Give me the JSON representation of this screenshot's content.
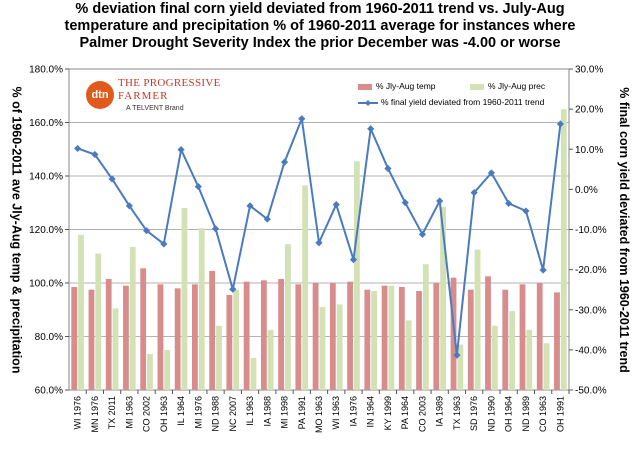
{
  "header": {
    "title_lines": [
      "%  deviation final corn yield deviated from 1960-2011 trend vs. July-Aug",
      "temperature and precipitation % of 1960-2011 average for instances where",
      "Palmer Drought Severity Index the prior December was -4.00 or worse"
    ]
  },
  "logo": {
    "mark": "dtn",
    "line1": "THE PROGRESSIVE",
    "line2": "FARMER",
    "line3": "A TELVENT Brand"
  },
  "chart_data": {
    "type": "bar",
    "title": "%  deviation final corn yield deviated from 1960-2011 trend vs. July-Aug temperature and precipitation % of 1960-2011 average for instances where Palmer Drought Severity Index the prior December was -4.00 or worse",
    "ylabel_left": "% of 1960-2011 ave Jly-Aug temp & precipitation",
    "ylabel_right": "% final corn yield deviated from 1960-2011 trend",
    "ylim_left": [
      60,
      180
    ],
    "ylim_right": [
      -50,
      30
    ],
    "left_ticks": [
      "60.0%",
      "80.0%",
      "100.0%",
      "120.0%",
      "140.0%",
      "160.0%",
      "180.0%"
    ],
    "right_ticks": [
      "-50.0%",
      "-40.0%",
      "-30.0%",
      "-20.0%",
      "-10.0%",
      "0.0%",
      "10.0%",
      "20.0%",
      "30.0%"
    ],
    "categories": [
      "WI 1976",
      "MN 1976",
      "TX 2011",
      "MI 1963",
      "CO 2002",
      "OH 1963",
      "IL 1964",
      "MI 1976",
      "ND 1988",
      "NC 2007",
      "IL 1963",
      "IA 1988",
      "MI 1998",
      "PA 1991",
      "MO 1963",
      "WI 1963",
      "IA 1976",
      "IN 1964",
      "KY 1999",
      "PA 1964",
      "CO 2003",
      "IA 1989",
      "TX 1963",
      "SD 1976",
      "ND 1990",
      "OH 1964",
      "ND 1989",
      "CO 1963",
      "OH 1991"
    ],
    "series": [
      {
        "name": "% Jly-Aug temp",
        "type": "bar",
        "axis": "left",
        "color": "#d98c8c",
        "values": [
          98.5,
          97.5,
          101.5,
          99,
          105.5,
          99.5,
          98,
          99.5,
          104.5,
          95.5,
          100.5,
          101,
          101.5,
          99.5,
          100,
          100,
          100.5,
          97.5,
          99,
          98.5,
          97,
          100,
          102,
          97.5,
          102.5,
          97.5,
          99.5,
          100,
          96.5
        ]
      },
      {
        "name": "% Jly-Aug prec",
        "type": "bar",
        "axis": "left",
        "color": "#d2e2b4",
        "values": [
          118,
          111,
          90.5,
          113.5,
          73.5,
          75,
          128,
          120.5,
          84,
          97.5,
          72,
          82.5,
          114.5,
          136.5,
          91,
          92,
          145.5,
          97,
          99,
          86,
          107,
          128.5,
          77,
          112.5,
          84,
          89.5,
          82.5,
          77.5,
          165
        ]
      },
      {
        "name": "% final yield deviated from 1960-2011 trend",
        "type": "line",
        "axis": "right",
        "color": "#4a7bbf",
        "values": [
          10.2,
          8.7,
          2.6,
          -4.1,
          -10.3,
          -13.6,
          9.9,
          0.7,
          -9.8,
          -24.9,
          -4.1,
          -7.4,
          6.8,
          17.6,
          -13.3,
          -3.8,
          -17.5,
          15.1,
          5.2,
          -3.3,
          -11.2,
          -2.9,
          -41.3,
          -0.8,
          4.1,
          -3.5,
          -5.4,
          -20.1,
          16.3
        ]
      }
    ]
  }
}
